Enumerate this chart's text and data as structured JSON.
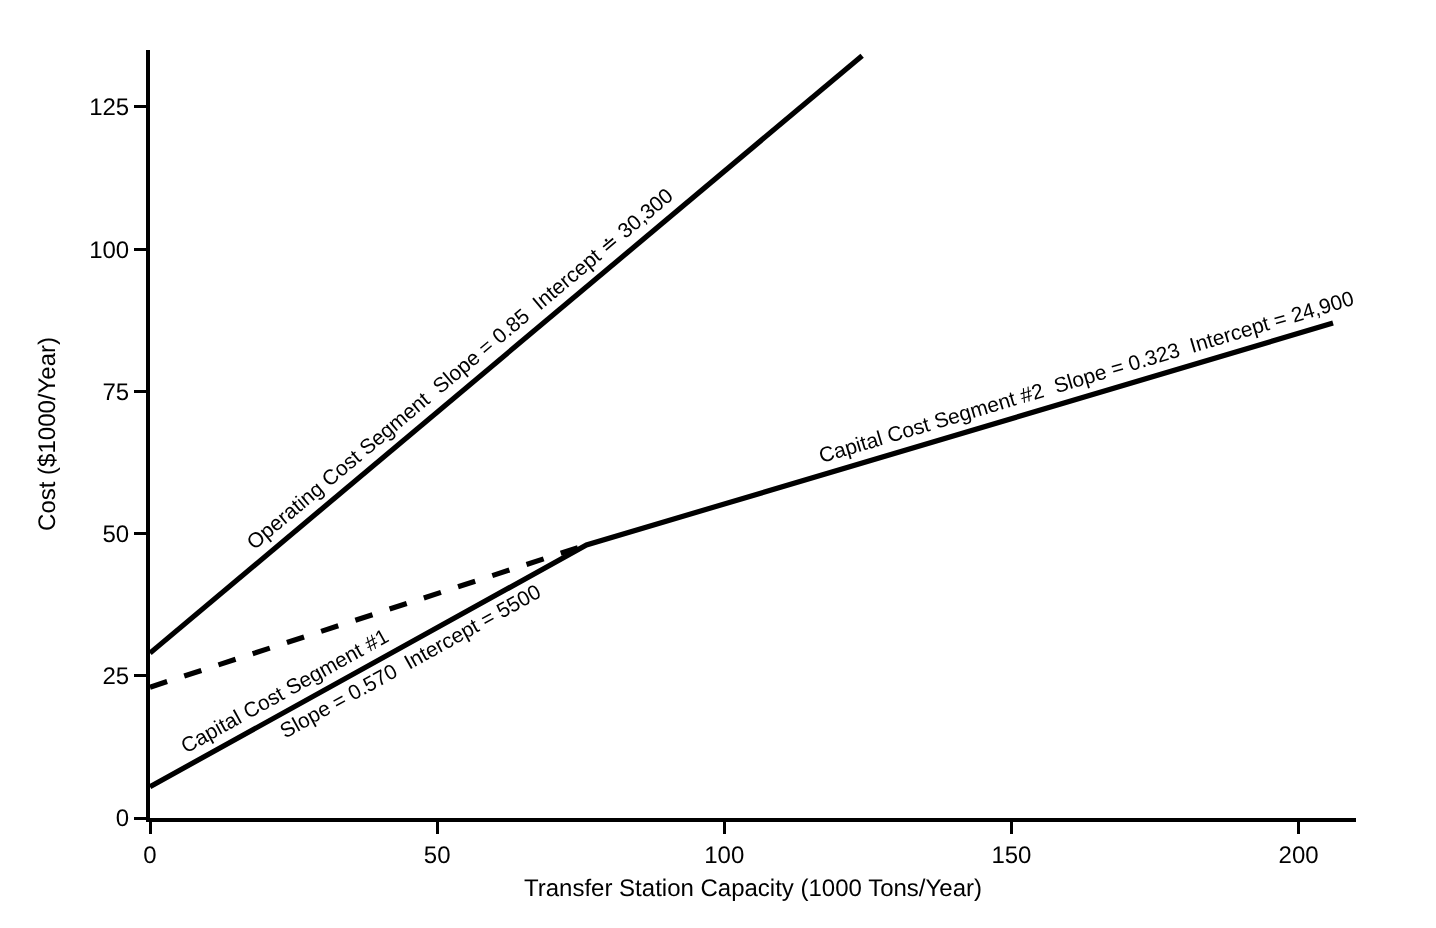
{
  "chart_data": {
    "type": "line",
    "xlabel": "Transfer Station Capacity (1000 Tons/Year)",
    "ylabel": "Cost ($1000/Year)",
    "xlim": [
      0,
      210
    ],
    "xticks": [
      0,
      50,
      100,
      150,
      200
    ],
    "ylim": [
      0,
      135
    ],
    "yticks": [
      0,
      25,
      50,
      75,
      100,
      125
    ],
    "marker": "none",
    "series": [
      {
        "color": "#000000",
        "x": [
          0,
          124
        ],
        "values": [
          29,
          134
        ],
        "line_style": "solid"
      },
      {
        "color": "#000000",
        "x": [
          0,
          76,
          206
        ],
        "values": [
          5.5,
          48,
          87
        ],
        "line_style": "solid"
      },
      {
        "color": "#000000",
        "x": [
          0,
          76
        ],
        "values": [
          23,
          48
        ],
        "line_style": "dashed"
      }
    ],
    "annotations": [
      {
        "text": "Operating Cost Segment  Slope = 0.85  Intercept ≐ 30,300",
        "x": 56,
        "y": 76.4
      },
      {
        "text": "Capital Cost Segment #2  Slope = 0.323  Intercept = 24,900",
        "x": 164,
        "y": 74.4
      },
      {
        "text": "Capital Cost Segment #1",
        "x": 25,
        "y": 19.5
      },
      {
        "text": "Slope = 0.570  Intercept = 5500",
        "x": 44,
        "y": 30.1
      }
    ]
  }
}
